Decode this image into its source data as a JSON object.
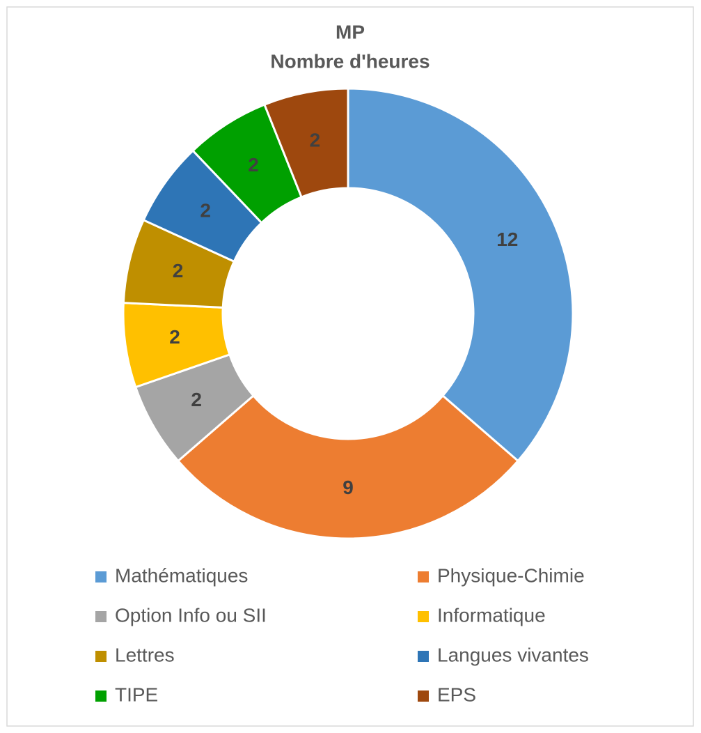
{
  "chart_data": {
    "type": "donut",
    "title": "MP",
    "subtitle": "Nombre d'heures",
    "categories": [
      "Mathématiques",
      "Physique-Chimie",
      "Option Info ou SII",
      "Informatique",
      "Lettres",
      "Langues vivantes",
      "TIPE",
      "EPS"
    ],
    "values": [
      12,
      9,
      2,
      2,
      2,
      2,
      2,
      2
    ],
    "colors": [
      "#5b9bd5",
      "#ed7d31",
      "#a5a5a5",
      "#ffc000",
      "#bf8f00",
      "#2e75b6",
      "#00a000",
      "#9e480e"
    ],
    "legend": "bottom"
  }
}
